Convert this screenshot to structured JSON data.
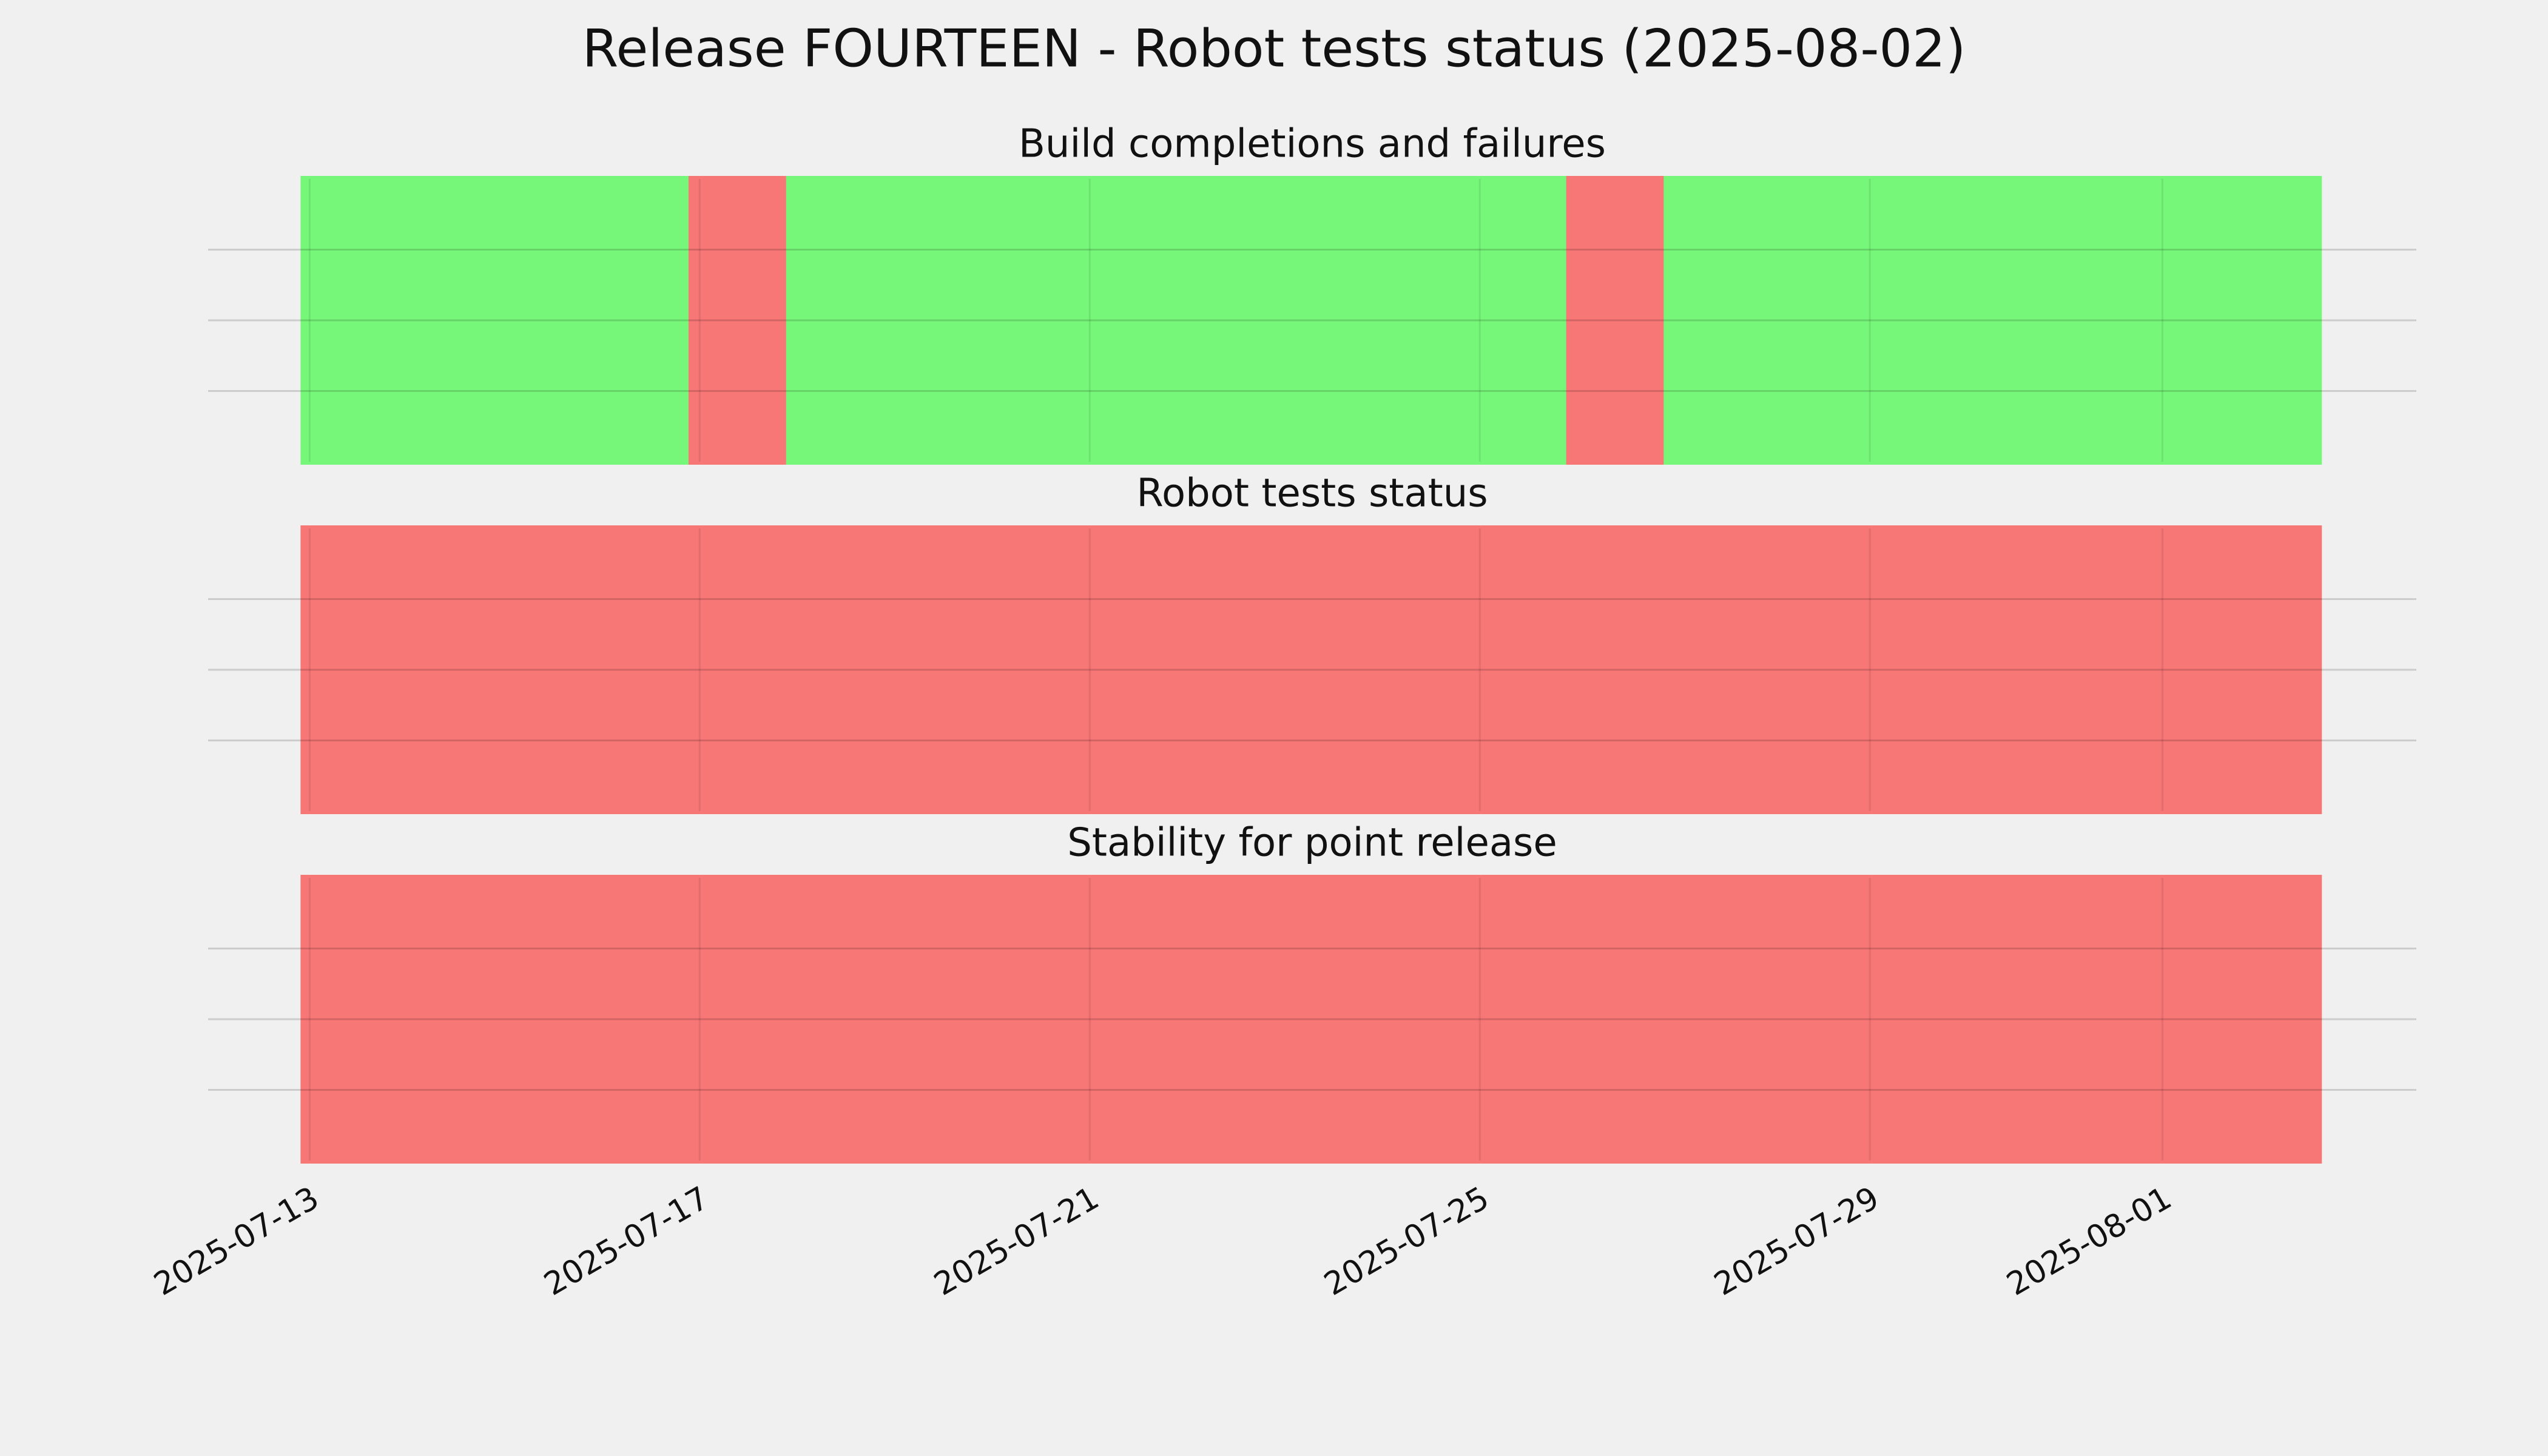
{
  "title": "Release FOURTEEN - Robot tests status (2025-08-02)",
  "chart_data": [
    {
      "type": "timeline",
      "title": "Build completions and failures",
      "spans": [
        {
          "start": "2025-07-12T22:30",
          "end": "2025-07-16T22:00",
          "color": "#76f779"
        },
        {
          "start": "2025-07-16T22:00",
          "end": "2025-07-17T22:00",
          "color": "#f77676"
        },
        {
          "start": "2025-07-17T22:00",
          "end": "2025-07-25T22:00",
          "color": "#76f779"
        },
        {
          "start": "2025-07-25T22:00",
          "end": "2025-07-26T22:00",
          "color": "#f77676"
        },
        {
          "start": "2025-07-26T22:00",
          "end": "2025-08-02T14:30",
          "color": "#76f779"
        }
      ],
      "xlim": [
        "2025-07-11T23:00",
        "2025-08-03T14:30"
      ],
      "xticks": [
        "2025-07-13",
        "2025-07-17",
        "2025-07-21",
        "2025-07-25",
        "2025-07-29",
        "2025-08-01"
      ],
      "ylim": [
        0,
        4
      ],
      "yticks": [
        1,
        2,
        3
      ],
      "grid": true
    },
    {
      "type": "timeline",
      "title": "Robot tests status",
      "spans": [
        {
          "start": "2025-07-12T22:30",
          "end": "2025-08-02T14:30",
          "color": "#f77676"
        }
      ],
      "xlim": [
        "2025-07-11T23:00",
        "2025-08-03T14:30"
      ],
      "xticks": [
        "2025-07-13",
        "2025-07-17",
        "2025-07-21",
        "2025-07-25",
        "2025-07-29",
        "2025-08-01"
      ],
      "ylim": [
        0,
        4
      ],
      "yticks": [
        1,
        2,
        3
      ],
      "grid": true
    },
    {
      "type": "timeline",
      "title": "Stability for point release",
      "spans": [
        {
          "start": "2025-07-12T22:30",
          "end": "2025-08-02T14:30",
          "color": "#f77676"
        }
      ],
      "xlim": [
        "2025-07-11T23:00",
        "2025-08-03T14:30"
      ],
      "xticks": [
        "2025-07-13",
        "2025-07-17",
        "2025-07-21",
        "2025-07-25",
        "2025-07-29",
        "2025-08-01"
      ],
      "ylim": [
        0,
        4
      ],
      "yticks": [
        1,
        2,
        3
      ],
      "grid": true
    }
  ]
}
